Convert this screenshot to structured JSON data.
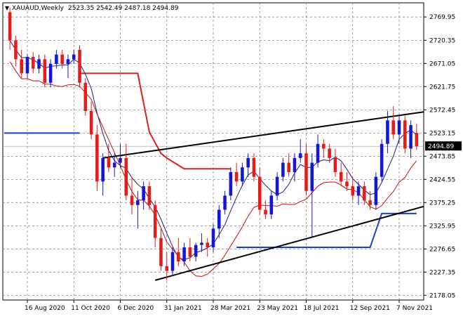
{
  "header": {
    "symbol_label": "XAUAUD,Weekly",
    "ohlc_text": "2523.35 2542.49 2487.18 2494.89",
    "toggle_glyph": "▼"
  },
  "current_price": "2494.89",
  "chart_data": {
    "type": "candlestick",
    "title": "",
    "ylim": [
      2168,
      2800
    ],
    "y_ticks": [
      {
        "value": 2769.95,
        "label": "2769.95"
      },
      {
        "value": 2720.35,
        "label": "2720.35"
      },
      {
        "value": 2671.05,
        "label": "2671.05"
      },
      {
        "value": 2621.75,
        "label": "2621.75"
      },
      {
        "value": 2572.45,
        "label": "2572.45"
      },
      {
        "value": 2523.15,
        "label": "2523.15"
      },
      {
        "value": 2473.85,
        "label": "2473.85"
      },
      {
        "value": 2424.55,
        "label": "2424.55"
      },
      {
        "value": 2375.25,
        "label": "2375.25"
      },
      {
        "value": 2325.95,
        "label": "2325.95"
      },
      {
        "value": 2276.65,
        "label": "2276.65"
      },
      {
        "value": 2227.35,
        "label": "2227.35"
      },
      {
        "value": 2178.05,
        "label": "2178.05"
      }
    ],
    "x_ticks": [
      {
        "bar": 3,
        "label": "16 Aug 2020"
      },
      {
        "bar": 11,
        "label": "11 Oct 2020"
      },
      {
        "bar": 19,
        "label": "6 Dec 2020"
      },
      {
        "bar": 27,
        "label": "31 Jan 2021"
      },
      {
        "bar": 35,
        "label": "28 Mar 2021"
      },
      {
        "bar": 43,
        "label": "23 May 2021"
      },
      {
        "bar": 51,
        "label": "18 Jul 2021"
      },
      {
        "bar": 59,
        "label": "12 Sep 2021"
      },
      {
        "bar": 67,
        "label": "7 Nov 2021"
      }
    ],
    "candles": [
      [
        2780,
        2790,
        2700,
        2720
      ],
      [
        2720,
        2730,
        2665,
        2680
      ],
      [
        2680,
        2700,
        2640,
        2650
      ],
      [
        2650,
        2690,
        2640,
        2685
      ],
      [
        2685,
        2695,
        2650,
        2660
      ],
      [
        2660,
        2690,
        2650,
        2680
      ],
      [
        2680,
        2690,
        2620,
        2630
      ],
      [
        2630,
        2680,
        2620,
        2670
      ],
      [
        2670,
        2700,
        2660,
        2690
      ],
      [
        2690,
        2700,
        2660,
        2670
      ],
      [
        2670,
        2690,
        2640,
        2680
      ],
      [
        2680,
        2700,
        2670,
        2690
      ],
      [
        2700,
        2710,
        2620,
        2630
      ],
      [
        2630,
        2640,
        2560,
        2570
      ],
      [
        2570,
        2590,
        2510,
        2520
      ],
      [
        2520,
        2540,
        2400,
        2420
      ],
      [
        2420,
        2480,
        2390,
        2470
      ],
      [
        2470,
        2500,
        2440,
        2450
      ],
      [
        2450,
        2480,
        2430,
        2460
      ],
      [
        2460,
        2500,
        2450,
        2470
      ],
      [
        2470,
        2500,
        2380,
        2390
      ],
      [
        2390,
        2430,
        2350,
        2370
      ],
      [
        2370,
        2400,
        2320,
        2380
      ],
      [
        2380,
        2420,
        2360,
        2410
      ],
      [
        2410,
        2420,
        2360,
        2370
      ],
      [
        2370,
        2380,
        2280,
        2300
      ],
      [
        2300,
        2320,
        2230,
        2240
      ],
      [
        2240,
        2270,
        2210,
        2230
      ],
      [
        2230,
        2280,
        2220,
        2270
      ],
      [
        2270,
        2300,
        2240,
        2250
      ],
      [
        2250,
        2290,
        2240,
        2280
      ],
      [
        2280,
        2300,
        2250,
        2260
      ],
      [
        2260,
        2290,
        2250,
        2285
      ],
      [
        2285,
        2310,
        2270,
        2290
      ],
      [
        2290,
        2300,
        2260,
        2280
      ],
      [
        2280,
        2330,
        2270,
        2320
      ],
      [
        2320,
        2370,
        2300,
        2360
      ],
      [
        2360,
        2400,
        2350,
        2390
      ],
      [
        2390,
        2450,
        2380,
        2440
      ],
      [
        2440,
        2460,
        2410,
        2420
      ],
      [
        2420,
        2460,
        2410,
        2450
      ],
      [
        2450,
        2480,
        2430,
        2470
      ],
      [
        2470,
        2480,
        2420,
        2430
      ],
      [
        2430,
        2450,
        2350,
        2360
      ],
      [
        2360,
        2380,
        2340,
        2350
      ],
      [
        2350,
        2400,
        2340,
        2390
      ],
      [
        2390,
        2440,
        2380,
        2430
      ],
      [
        2430,
        2470,
        2420,
        2460
      ],
      [
        2460,
        2480,
        2430,
        2440
      ],
      [
        2440,
        2480,
        2420,
        2470
      ],
      [
        2470,
        2510,
        2460,
        2480
      ],
      [
        2480,
        2500,
        2390,
        2400
      ],
      [
        2400,
        2480,
        2300,
        2460
      ],
      [
        2460,
        2520,
        2450,
        2500
      ],
      [
        2500,
        2510,
        2470,
        2490
      ],
      [
        2490,
        2500,
        2460,
        2470
      ],
      [
        2470,
        2490,
        2430,
        2440
      ],
      [
        2440,
        2460,
        2410,
        2420
      ],
      [
        2420,
        2440,
        2400,
        2410
      ],
      [
        2410,
        2430,
        2380,
        2390
      ],
      [
        2390,
        2420,
        2370,
        2410
      ],
      [
        2410,
        2420,
        2370,
        2380
      ],
      [
        2380,
        2400,
        2360,
        2370
      ],
      [
        2370,
        2440,
        2360,
        2430
      ],
      [
        2430,
        2510,
        2420,
        2500
      ],
      [
        2500,
        2570,
        2480,
        2550
      ],
      [
        2550,
        2580,
        2510,
        2520
      ],
      [
        2520,
        2560,
        2500,
        2550
      ],
      [
        2550,
        2560,
        2480,
        2490
      ],
      [
        2490,
        2550,
        2470,
        2540
      ],
      [
        2523.35,
        2542.49,
        2487.18,
        2494.89
      ]
    ],
    "indicator_levels": {
      "red_step_high": 2650,
      "red_step_low": 2447,
      "blue_step_left": 2523,
      "blue_step_bottom": 2280,
      "blue_step_top": 2352,
      "support_line_start": 2210,
      "support_line_end": 2367,
      "resistance_line_start": 2470,
      "resistance_line_end": 2568
    },
    "colors": {
      "bull": "#1515d6",
      "bear": "#e81b1b",
      "ma_blue": "#202080",
      "ma_red": "#cc1111",
      "step_red": "#e31b1b",
      "step_blue": "#1a3fd0",
      "trendline": "#000000"
    }
  }
}
